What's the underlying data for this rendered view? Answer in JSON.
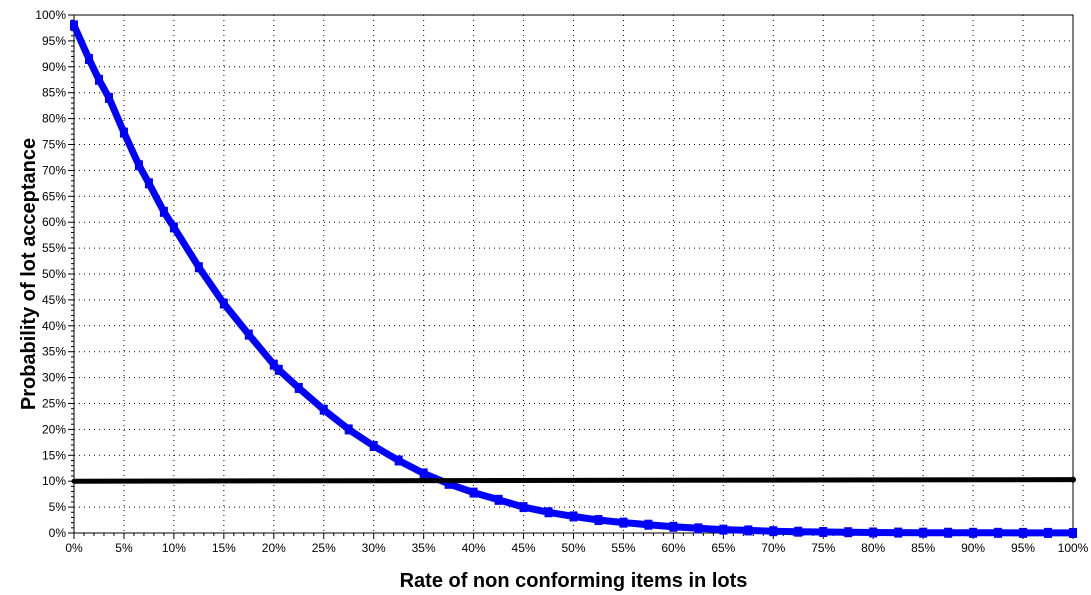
{
  "chart_data": {
    "type": "line",
    "title": "",
    "xlabel": "Rate of non conforming items in lots",
    "ylabel": "Probability of lot acceptance",
    "xlim": [
      0,
      100
    ],
    "ylim": [
      0,
      100
    ],
    "x_ticks": [
      "0%",
      "5%",
      "10%",
      "15%",
      "20%",
      "25%",
      "30%",
      "35%",
      "40%",
      "45%",
      "50%",
      "55%",
      "60%",
      "65%",
      "70%",
      "75%",
      "80%",
      "85%",
      "90%",
      "95%",
      "100%"
    ],
    "y_ticks": [
      "0%",
      "5%",
      "10%",
      "15%",
      "20%",
      "25%",
      "30%",
      "35%",
      "40%",
      "45%",
      "50%",
      "55%",
      "60%",
      "65%",
      "70%",
      "75%",
      "80%",
      "85%",
      "90%",
      "95%",
      "100%"
    ],
    "grid": true,
    "series": [
      {
        "color": "#0000ff",
        "marker": "square",
        "points": [
          [
            0,
            98.0
          ],
          [
            1.5,
            91.5
          ],
          [
            2.5,
            87.5
          ],
          [
            3.5,
            84.0
          ],
          [
            5,
            77.3
          ],
          [
            6.5,
            71.0
          ],
          [
            7.5,
            67.5
          ],
          [
            9,
            62.0
          ],
          [
            10,
            59.0
          ],
          [
            12.5,
            51.3
          ],
          [
            15,
            44.3
          ],
          [
            17.5,
            38.3
          ],
          [
            20,
            32.5
          ],
          [
            20.5,
            31.5
          ],
          [
            22.5,
            28.0
          ],
          [
            25,
            23.8
          ],
          [
            27.5,
            20.0
          ],
          [
            30,
            16.8
          ],
          [
            32.5,
            14.0
          ],
          [
            35,
            11.5
          ],
          [
            37.5,
            9.5
          ],
          [
            40,
            7.8
          ],
          [
            42.5,
            6.4
          ],
          [
            45,
            5.0
          ],
          [
            47.5,
            4.0
          ],
          [
            50,
            3.2
          ],
          [
            52.5,
            2.5
          ],
          [
            55,
            2.0
          ],
          [
            57.5,
            1.6
          ],
          [
            60,
            1.2
          ],
          [
            62.5,
            0.9
          ],
          [
            65,
            0.65
          ],
          [
            67.5,
            0.5
          ],
          [
            70,
            0.35
          ],
          [
            72.5,
            0.25
          ],
          [
            75,
            0.2
          ],
          [
            77.5,
            0.15
          ],
          [
            80,
            0.1
          ],
          [
            82.5,
            0.08
          ],
          [
            85,
            0.06
          ],
          [
            87.5,
            0.05
          ],
          [
            90,
            0.04
          ],
          [
            92.5,
            0.03
          ],
          [
            95,
            0.02
          ],
          [
            97.5,
            0.02
          ],
          [
            100,
            0.01
          ]
        ]
      },
      {
        "color": "#000000",
        "marker": "none",
        "points": [
          [
            0,
            10.0
          ],
          [
            100,
            10.3
          ]
        ]
      }
    ]
  }
}
